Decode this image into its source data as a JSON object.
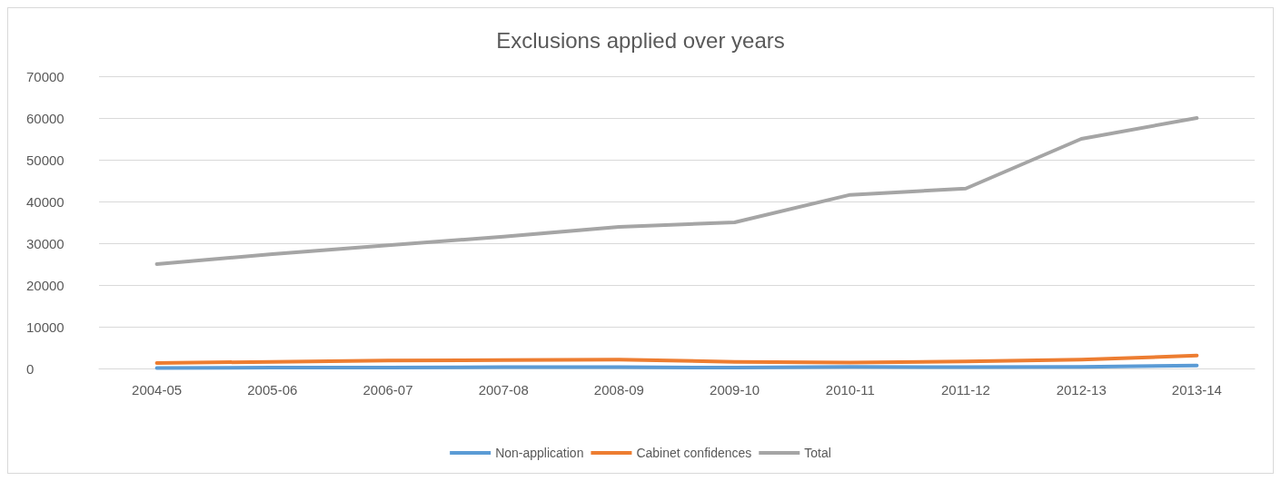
{
  "chart_data": {
    "type": "line",
    "title": "Exclusions applied over years",
    "categories": [
      "2004-05",
      "2005-06",
      "2006-07",
      "2007-08",
      "2008-09",
      "2009-10",
      "2010-11",
      "2011-12",
      "2012-13",
      "2013-14"
    ],
    "series": [
      {
        "name": "Non-application",
        "color": "#5b9bd5",
        "values": [
          100,
          200,
          200,
          300,
          300,
          200,
          400,
          300,
          400,
          700
        ]
      },
      {
        "name": "Cabinet confidences",
        "color": "#ed7d31",
        "values": [
          1300,
          1600,
          1900,
          2000,
          2100,
          1600,
          1400,
          1700,
          2100,
          3100
        ]
      },
      {
        "name": "Total",
        "color": "#a5a5a5",
        "values": [
          25000,
          27400,
          29500,
          31600,
          33900,
          35000,
          41600,
          43100,
          55000,
          60000
        ]
      }
    ],
    "ylim": [
      0,
      70000
    ],
    "yticks": [
      0,
      10000,
      20000,
      30000,
      40000,
      50000,
      60000,
      70000
    ],
    "grid": "y",
    "legend": "bottom",
    "marker": "none",
    "line_style": "solid"
  }
}
